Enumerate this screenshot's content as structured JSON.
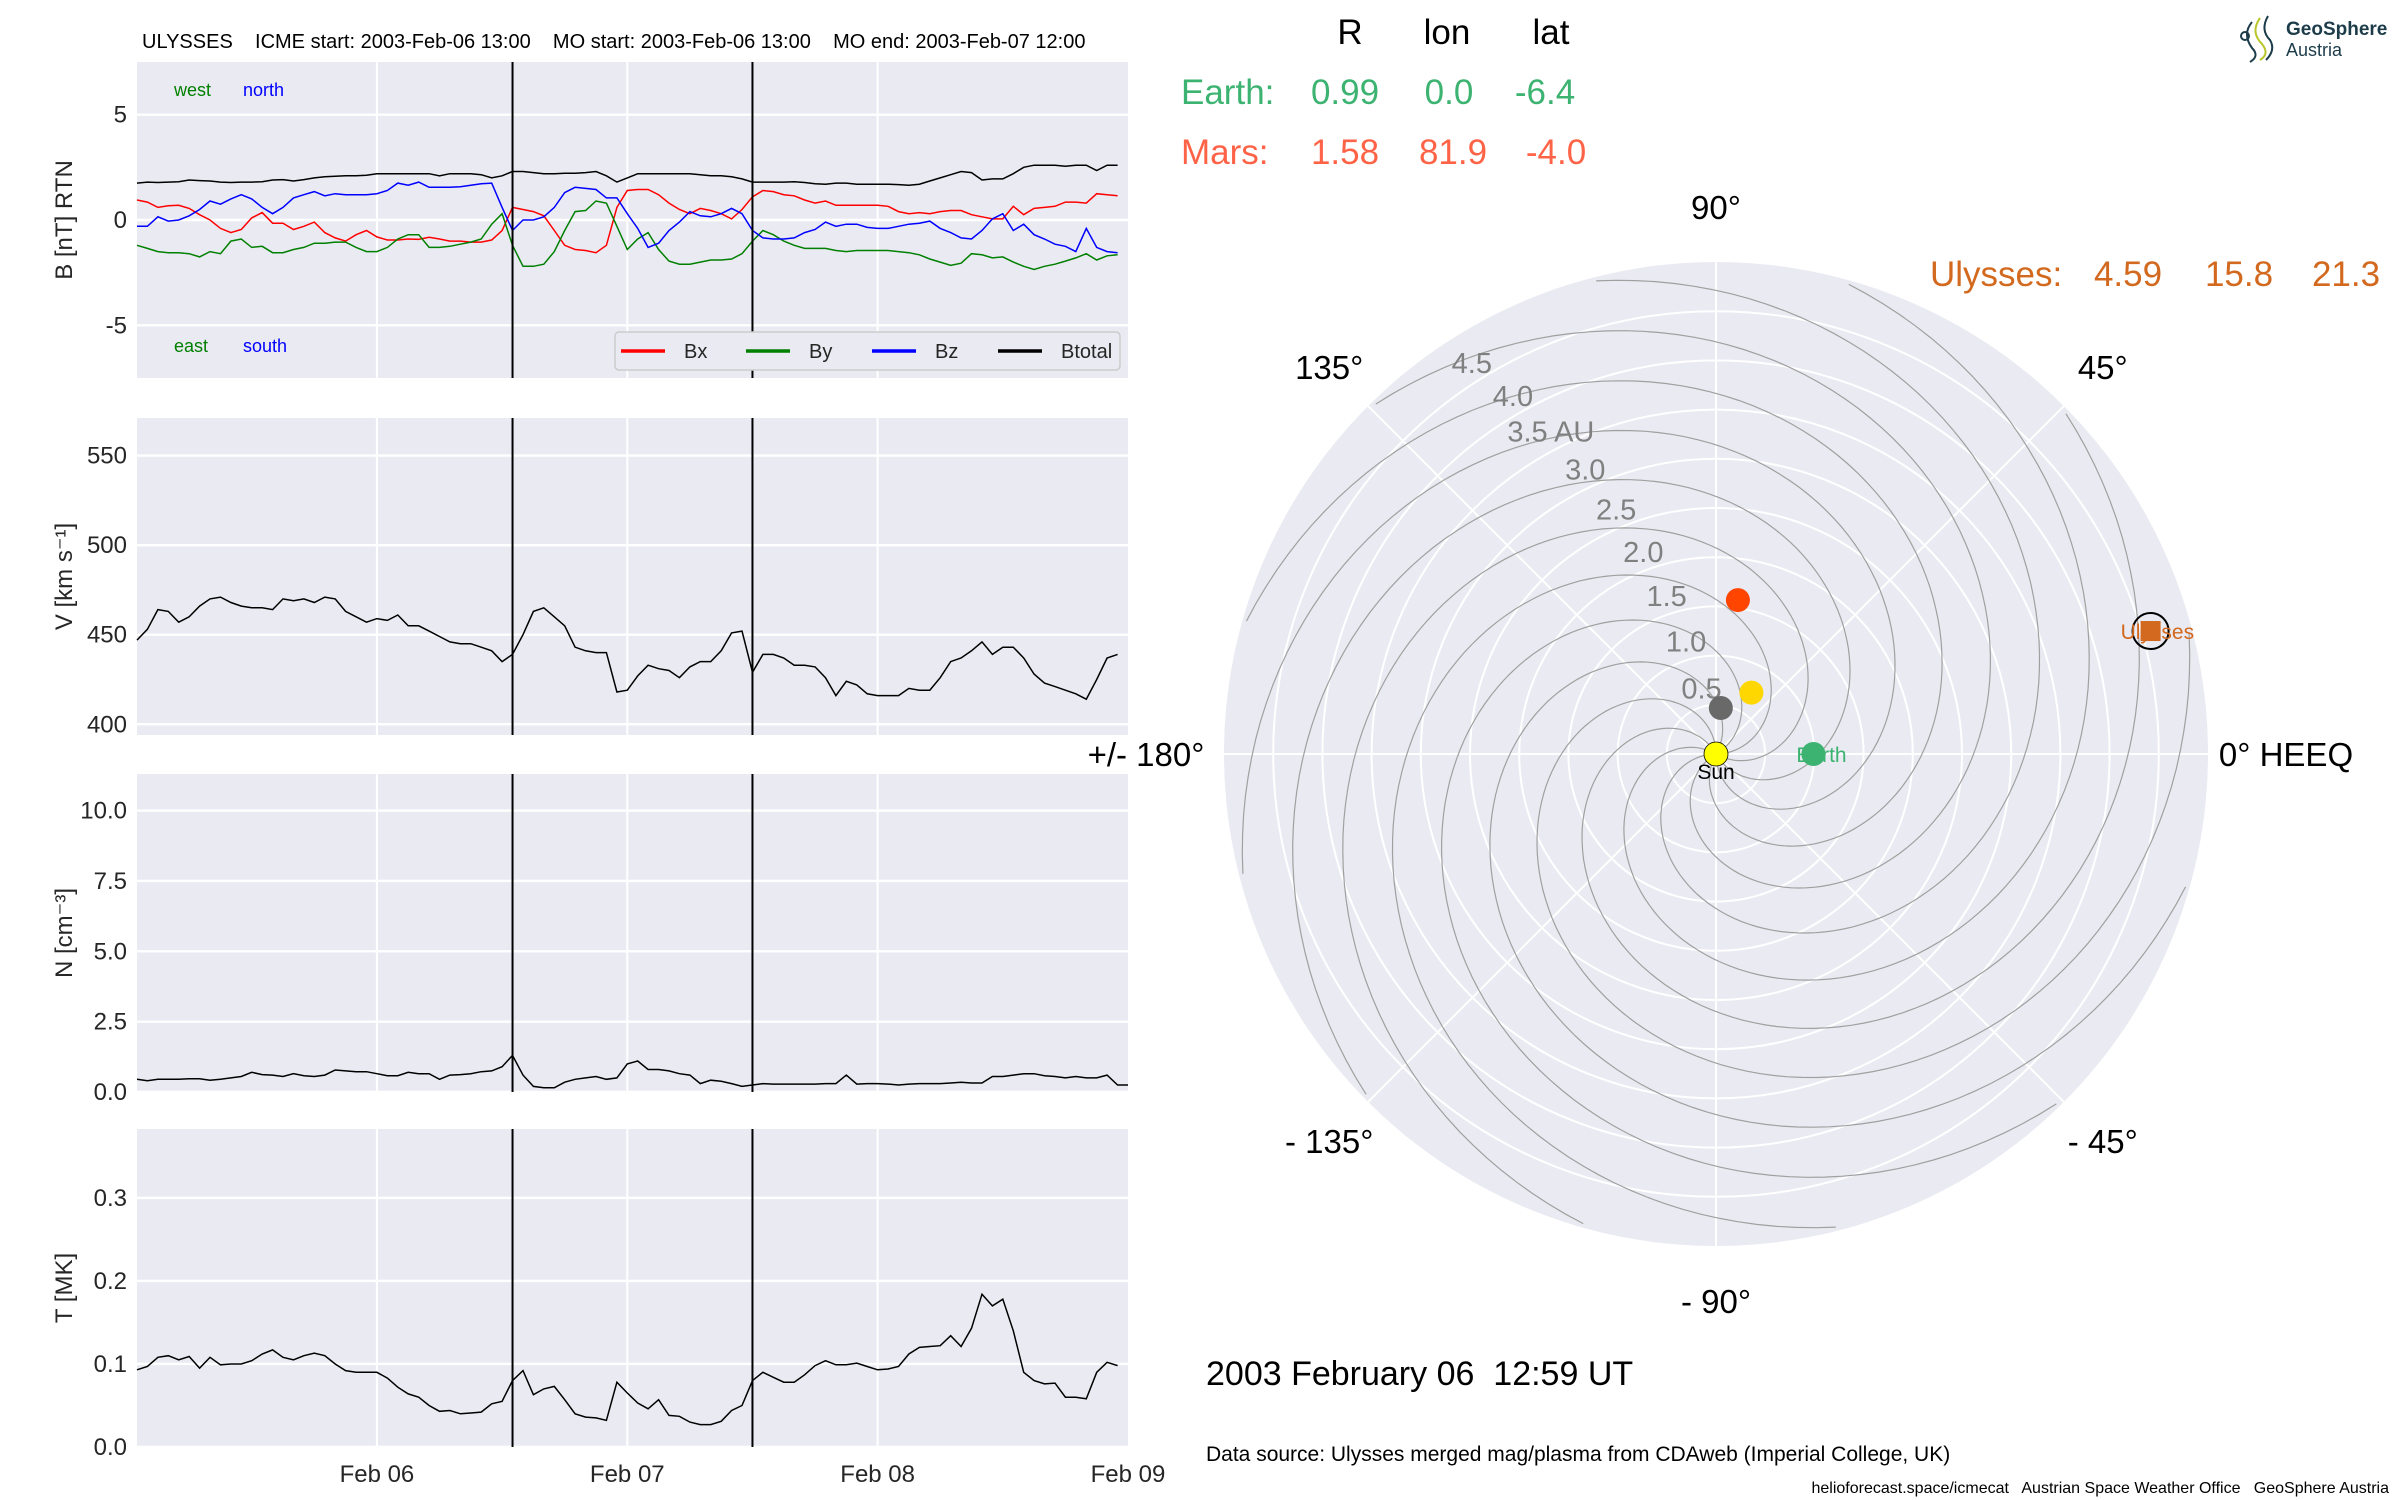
{
  "header": {
    "title": "ULYSSES    ICME start: 2003-Feb-06 13:00    MO start: 2003-Feb-06 13:00    MO end: 2003-Feb-07 12:00"
  },
  "annotations": {
    "west": "west",
    "north": "north",
    "east": "east",
    "south": "south"
  },
  "colors": {
    "bx": "#ff0000",
    "by": "#008000",
    "bz": "#0000ff",
    "btotal": "#000000",
    "panel_bg": "#eaeaf2",
    "earth": "#3cb371",
    "mars": "#ff6347",
    "ulysses": "#d2691e"
  },
  "position_table": {
    "headers": [
      "R",
      "lon",
      "lat"
    ],
    "rows": [
      {
        "name": "Earth:",
        "R": "0.99",
        "lon": "0.0",
        "lat": "-6.4"
      },
      {
        "name": "Mars:",
        "R": "1.58",
        "lon": "81.9",
        "lat": "-4.0"
      },
      {
        "name": "Ulysses:",
        "R": "4.59",
        "lon": "15.8",
        "lat": "21.3"
      }
    ]
  },
  "logo": {
    "line1": "GeoSphere",
    "line2": "Austria"
  },
  "date_label": "2003 February 06  12:59 UT",
  "data_source": "Data source: Ulysses merged mag/plasma from CDAweb (Imperial College, UK)",
  "footer": "helioforecast.space/icmecat   Austrian Space Weather Office   GeoSphere Austria",
  "chart_data": [
    {
      "type": "line",
      "title": "",
      "ylabel": "B [nT] RTN",
      "ylim": [
        -7.5,
        7.5
      ],
      "yticks": [
        "5",
        "0",
        "-5"
      ],
      "ytick_values": [
        5,
        0,
        -5
      ],
      "time_start": "2003-02-05 01:00",
      "step_hours": 1,
      "markers_hours": [
        36,
        59
      ],
      "legend": {
        "placement": "lower-right",
        "entries": [
          "Bx",
          "By",
          "Bz",
          "Btotal"
        ]
      },
      "series": [
        {
          "name": "Bx",
          "color": "#ff0000",
          "values": [
            0.95,
            0.85,
            0.6,
            0.68,
            0.7,
            0.55,
            0.25,
            0.0,
            -0.4,
            -0.6,
            -0.45,
            0.1,
            0.35,
            -0.15,
            -0.15,
            -0.45,
            -0.3,
            -0.1,
            -0.6,
            -0.85,
            -1.0,
            -0.7,
            -0.5,
            -0.8,
            -0.95,
            -0.95,
            -0.9,
            -0.92,
            -0.82,
            -0.9,
            -1.0,
            -1.0,
            -1.05,
            -1.05,
            -0.95,
            -0.5,
            0.6,
            0.5,
            0.4,
            0.2,
            -0.5,
            -1.2,
            -1.4,
            -1.45,
            -1.55,
            -1.2,
            0.6,
            1.4,
            1.45,
            1.45,
            1.2,
            0.8,
            0.5,
            0.3,
            0.55,
            0.45,
            0.3,
            0.05,
            0.5,
            1.1,
            1.4,
            1.35,
            1.2,
            1.15,
            0.95,
            0.8,
            0.9,
            0.7,
            0.7,
            0.7,
            0.7,
            0.7,
            0.65,
            0.4,
            0.3,
            0.35,
            0.3,
            0.4,
            0.45,
            0.45,
            0.25,
            0.15,
            0.05,
            0.05,
            0.65,
            0.25,
            0.55,
            0.6,
            0.65,
            0.85,
            0.85,
            0.8,
            1.25,
            1.2,
            1.15
          ]
        },
        {
          "name": "By",
          "color": "#008000",
          "values": [
            -1.2,
            -1.35,
            -1.5,
            -1.55,
            -1.55,
            -1.6,
            -1.75,
            -1.5,
            -1.6,
            -1.0,
            -0.9,
            -1.3,
            -1.25,
            -1.55,
            -1.55,
            -1.4,
            -1.3,
            -1.1,
            -1.1,
            -1.05,
            -1.05,
            -1.3,
            -1.5,
            -1.5,
            -1.3,
            -0.9,
            -0.7,
            -0.7,
            -1.3,
            -1.3,
            -1.25,
            -1.15,
            -1.05,
            -0.9,
            -0.2,
            0.3,
            -1.2,
            -2.2,
            -2.2,
            -2.1,
            -1.5,
            -0.5,
            0.4,
            0.45,
            0.9,
            0.8,
            -0.3,
            -1.4,
            -0.9,
            -0.6,
            -1.4,
            -1.95,
            -2.1,
            -2.1,
            -2.0,
            -1.9,
            -1.9,
            -1.85,
            -1.6,
            -1.0,
            -0.5,
            -0.7,
            -1.0,
            -1.2,
            -1.35,
            -1.35,
            -1.35,
            -1.45,
            -1.5,
            -1.45,
            -1.45,
            -1.45,
            -1.45,
            -1.5,
            -1.55,
            -1.65,
            -1.85,
            -2.0,
            -2.15,
            -2.05,
            -1.6,
            -1.65,
            -1.8,
            -1.75,
            -2.0,
            -2.2,
            -2.35,
            -2.2,
            -2.1,
            -1.95,
            -1.8,
            -1.6,
            -1.9,
            -1.7,
            -1.65
          ]
        },
        {
          "name": "Bz",
          "color": "#0000ff",
          "values": [
            -0.3,
            -0.3,
            0.15,
            -0.05,
            0.0,
            0.2,
            0.5,
            0.9,
            0.75,
            1.0,
            1.2,
            1.0,
            0.6,
            0.3,
            0.6,
            1.05,
            1.2,
            1.35,
            1.15,
            1.25,
            1.2,
            1.2,
            1.2,
            1.25,
            1.4,
            1.75,
            1.65,
            1.8,
            1.55,
            1.55,
            1.55,
            1.58,
            1.65,
            1.72,
            1.75,
            0.6,
            -0.5,
            0.0,
            0.0,
            0.15,
            0.6,
            1.3,
            1.55,
            1.5,
            1.45,
            1.05,
            1.05,
            0.3,
            -0.4,
            -1.3,
            -1.1,
            -0.5,
            -0.1,
            0.4,
            0.2,
            0.15,
            0.3,
            0.55,
            0.3,
            -0.5,
            -0.85,
            -0.9,
            -0.9,
            -0.85,
            -0.6,
            -0.45,
            -0.1,
            -0.3,
            -0.2,
            -0.2,
            -0.35,
            -0.4,
            -0.4,
            -0.3,
            -0.2,
            -0.15,
            -0.05,
            -0.4,
            -0.6,
            -0.85,
            -0.9,
            -0.5,
            0.05,
            0.3,
            -0.5,
            -0.2,
            -0.7,
            -0.9,
            -1.15,
            -1.25,
            -1.5,
            -0.4,
            -1.3,
            -1.5,
            -1.55
          ]
        },
        {
          "name": "Btotal",
          "color": "#000000",
          "values": [
            1.75,
            1.8,
            1.78,
            1.8,
            1.82,
            1.9,
            1.87,
            1.85,
            1.8,
            1.78,
            1.8,
            1.8,
            1.82,
            1.9,
            1.92,
            1.85,
            1.92,
            2.0,
            2.05,
            2.08,
            2.1,
            2.1,
            2.12,
            2.2,
            2.2,
            2.2,
            2.2,
            2.2,
            2.2,
            2.1,
            2.2,
            2.2,
            2.2,
            2.15,
            2.0,
            2.1,
            2.3,
            2.3,
            2.25,
            2.2,
            2.2,
            2.22,
            2.22,
            2.25,
            2.3,
            2.1,
            1.8,
            2.0,
            2.2,
            2.2,
            2.2,
            2.2,
            2.2,
            2.2,
            2.15,
            2.1,
            2.1,
            2.05,
            1.95,
            1.8,
            1.8,
            1.8,
            1.8,
            1.82,
            1.78,
            1.72,
            1.7,
            1.75,
            1.75,
            1.7,
            1.7,
            1.7,
            1.7,
            1.68,
            1.65,
            1.7,
            1.85,
            2.0,
            2.15,
            2.3,
            2.25,
            1.9,
            1.95,
            1.95,
            2.2,
            2.5,
            2.6,
            2.6,
            2.6,
            2.55,
            2.6,
            2.6,
            2.35,
            2.6,
            2.6
          ]
        }
      ]
    },
    {
      "type": "line",
      "ylabel": "V [km s⁻¹]",
      "ylim": [
        394,
        571
      ],
      "yticks": [
        "400",
        "450",
        "500",
        "550"
      ],
      "ytick_values": [
        400,
        450,
        500,
        550
      ],
      "time_start": "2003-02-05 01:00",
      "step_hours": 1,
      "markers_hours": [
        36,
        59
      ],
      "series": [
        {
          "name": "V",
          "color": "#000000",
          "values": [
            447,
            453,
            464,
            463,
            457,
            460,
            466,
            470,
            471,
            468,
            466,
            465,
            465,
            464,
            470,
            469,
            470,
            468,
            471,
            470,
            463,
            460,
            457,
            459,
            458,
            461,
            455,
            455,
            452,
            449,
            446,
            445,
            445,
            443,
            441,
            435,
            439,
            450,
            463,
            465,
            460,
            455,
            443,
            441,
            440,
            440,
            418,
            419,
            427,
            433,
            431,
            430,
            426,
            432,
            435,
            435,
            441,
            451,
            452,
            429,
            439,
            439,
            437,
            433,
            433,
            432,
            426,
            416,
            424,
            422,
            417,
            416,
            416,
            416,
            420,
            419,
            419,
            426,
            435,
            437,
            441,
            446,
            439,
            443,
            443,
            437,
            428,
            423,
            421,
            419,
            417,
            414,
            425,
            437,
            439
          ]
        }
      ]
    },
    {
      "type": "line",
      "ylabel": "N [cm⁻³]",
      "ylim": [
        0,
        11.3
      ],
      "yticks": [
        "0.0",
        "2.5",
        "5.0",
        "7.5",
        "10.0"
      ],
      "ytick_values": [
        0,
        2.5,
        5,
        7.5,
        10
      ],
      "time_start": "2003-02-05 01:00",
      "step_hours": 1,
      "markers_hours": [
        36,
        59
      ],
      "series": [
        {
          "name": "N",
          "color": "#000000",
          "values": [
            0.45,
            0.4,
            0.45,
            0.45,
            0.45,
            0.47,
            0.47,
            0.42,
            0.45,
            0.5,
            0.55,
            0.7,
            0.62,
            0.6,
            0.55,
            0.65,
            0.58,
            0.55,
            0.6,
            0.78,
            0.75,
            0.72,
            0.72,
            0.65,
            0.58,
            0.58,
            0.7,
            0.65,
            0.65,
            0.45,
            0.6,
            0.62,
            0.65,
            0.72,
            0.75,
            0.9,
            1.3,
            0.6,
            0.2,
            0.15,
            0.15,
            0.35,
            0.45,
            0.5,
            0.55,
            0.45,
            0.5,
            1.0,
            1.1,
            0.8,
            0.8,
            0.75,
            0.65,
            0.6,
            0.3,
            0.42,
            0.38,
            0.3,
            0.2,
            0.25,
            0.3,
            0.28,
            0.28,
            0.28,
            0.28,
            0.28,
            0.3,
            0.3,
            0.6,
            0.28,
            0.3,
            0.3,
            0.28,
            0.25,
            0.28,
            0.3,
            0.3,
            0.3,
            0.32,
            0.35,
            0.32,
            0.32,
            0.55,
            0.55,
            0.6,
            0.65,
            0.65,
            0.58,
            0.55,
            0.5,
            0.55,
            0.5,
            0.5,
            0.6,
            0.25,
            0.25
          ]
        }
      ]
    },
    {
      "type": "line",
      "ylabel": "T [MK]",
      "ylim": [
        0,
        0.383
      ],
      "yticks": [
        "0.0",
        "0.1",
        "0.2",
        "0.3"
      ],
      "ytick_values": [
        0,
        0.1,
        0.2,
        0.3
      ],
      "xticks": [
        "Feb 06",
        "Feb 07",
        "Feb 08",
        "Feb 09"
      ],
      "xtick_hours": [
        23,
        47,
        71,
        95
      ],
      "time_start": "2003-02-05 01:00",
      "step_hours": 1,
      "markers_hours": [
        36,
        59
      ],
      "series": [
        {
          "name": "T",
          "color": "#000000",
          "values": [
            0.093,
            0.097,
            0.108,
            0.11,
            0.105,
            0.109,
            0.095,
            0.108,
            0.099,
            0.1,
            0.1,
            0.104,
            0.112,
            0.117,
            0.108,
            0.105,
            0.11,
            0.113,
            0.11,
            0.1,
            0.092,
            0.09,
            0.09,
            0.09,
            0.083,
            0.072,
            0.064,
            0.06,
            0.05,
            0.043,
            0.044,
            0.04,
            0.041,
            0.042,
            0.052,
            0.055,
            0.08,
            0.092,
            0.063,
            0.07,
            0.073,
            0.057,
            0.04,
            0.036,
            0.035,
            0.032,
            0.078,
            0.065,
            0.053,
            0.046,
            0.057,
            0.038,
            0.037,
            0.03,
            0.027,
            0.027,
            0.031,
            0.044,
            0.05,
            0.08,
            0.09,
            0.084,
            0.078,
            0.078,
            0.087,
            0.098,
            0.104,
            0.099,
            0.099,
            0.101,
            0.097,
            0.093,
            0.094,
            0.097,
            0.112,
            0.12,
            0.121,
            0.122,
            0.134,
            0.121,
            0.143,
            0.184,
            0.17,
            0.178,
            0.14,
            0.09,
            0.08,
            0.076,
            0.077,
            0.06,
            0.06,
            0.058,
            0.09,
            0.102,
            0.098
          ]
        }
      ]
    },
    {
      "type": "scatter",
      "projection": "polar",
      "rlim": [
        0,
        5
      ],
      "rticks": [
        "0.5",
        "1.0",
        "1.5",
        "2.0",
        "2.5",
        "3.0",
        "3.5 AU",
        "4.0",
        "4.5"
      ],
      "rtick_values": [
        0.5,
        1,
        1.5,
        2,
        2.5,
        3,
        3.5,
        4,
        4.5
      ],
      "angle_labels": [
        {
          "deg": 90,
          "text": "90°"
        },
        {
          "deg": 45,
          "text": "45°"
        },
        {
          "deg": 135,
          "text": "135°"
        },
        {
          "deg": 180,
          "text": "+/- 180°"
        },
        {
          "deg": 0,
          "text": "0° HEEQ"
        },
        {
          "deg": -135,
          "text": "- 135°"
        },
        {
          "deg": -45,
          "text": "- 45°"
        },
        {
          "deg": -90,
          "text": "- 90°"
        }
      ],
      "spiral_count": 12,
      "bodies": [
        {
          "name": "sun",
          "label": "Sun",
          "r": 0,
          "lon": 0,
          "color": "#ffff00",
          "marker": "circle"
        },
        {
          "name": "mercury",
          "r": 0.47,
          "lon": 84,
          "color": "#696969",
          "marker": "circle"
        },
        {
          "name": "venus",
          "r": 0.72,
          "lon": 60,
          "color": "#ffd700",
          "marker": "circle"
        },
        {
          "name": "mars",
          "r": 1.58,
          "lon": 81.9,
          "color": "#ff4500",
          "marker": "circle"
        },
        {
          "name": "earth",
          "label": "Earth",
          "r": 0.99,
          "lon": 0.0,
          "color": "#3cb371",
          "marker": "circle"
        },
        {
          "name": "ulysses",
          "label": "Ulysses",
          "r": 4.59,
          "lon": 15.8,
          "color": "#d2691e",
          "marker": "square"
        }
      ]
    }
  ]
}
